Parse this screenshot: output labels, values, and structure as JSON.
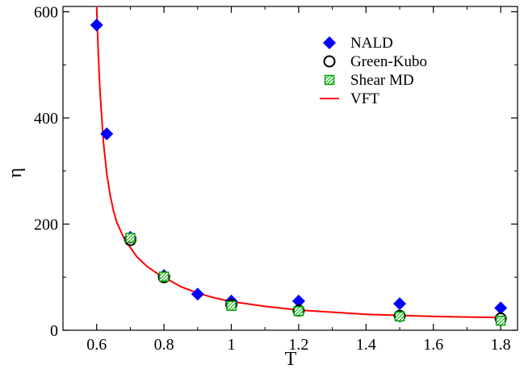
{
  "chart_data": {
    "type": "scatter",
    "xlabel": "T",
    "ylabel": "η",
    "xlim": [
      0.5,
      1.85
    ],
    "ylim": [
      0,
      610
    ],
    "xticks": [
      0.6,
      0.8,
      1.0,
      1.2,
      1.4,
      1.6,
      1.8
    ],
    "xtick_labels": [
      "0.6",
      "0.8",
      "1",
      "1.2",
      "1.4",
      "1.6",
      "1.8"
    ],
    "yticks": [
      0,
      200,
      400,
      600
    ],
    "ytick_labels": [
      "0",
      "200",
      "400",
      "600"
    ],
    "grid": false,
    "legend": {
      "placement": "top-right"
    },
    "series": [
      {
        "name": "NALD",
        "marker": "diamond",
        "color": "#0000ff",
        "x": [
          0.6,
          0.63,
          0.7,
          0.8,
          0.9,
          1.0,
          1.2,
          1.5,
          1.8
        ],
        "y": [
          575,
          370,
          175,
          103,
          68,
          55,
          55,
          50,
          42
        ]
      },
      {
        "name": "Green-Kubo",
        "marker": "open-circle",
        "color": "#000000",
        "x": [
          0.7,
          0.8,
          1.0,
          1.2,
          1.5,
          1.8
        ],
        "y": [
          170,
          100,
          48,
          37,
          27,
          22
        ]
      },
      {
        "name": "Shear MD",
        "marker": "hatched-square",
        "color": "#00a000",
        "x": [
          0.7,
          0.8,
          1.0,
          1.2,
          1.5,
          1.8
        ],
        "y": [
          174,
          101,
          46,
          36,
          26,
          18
        ]
      },
      {
        "name": "VFT",
        "marker": "line",
        "color": "#ff0000",
        "x": [
          0.6,
          0.605,
          0.61,
          0.62,
          0.63,
          0.64,
          0.65,
          0.66,
          0.68,
          0.7,
          0.72,
          0.75,
          0.78,
          0.8,
          0.85,
          0.9,
          0.95,
          1.0,
          1.1,
          1.2,
          1.3,
          1.4,
          1.5,
          1.6,
          1.7,
          1.8
        ],
        "y": [
          610,
          520,
          450,
          355,
          295,
          255,
          225,
          203,
          175,
          156,
          138,
          120,
          107,
          100,
          82,
          70,
          61,
          54,
          45,
          38,
          34,
          30,
          28,
          26,
          25,
          24
        ]
      }
    ]
  }
}
